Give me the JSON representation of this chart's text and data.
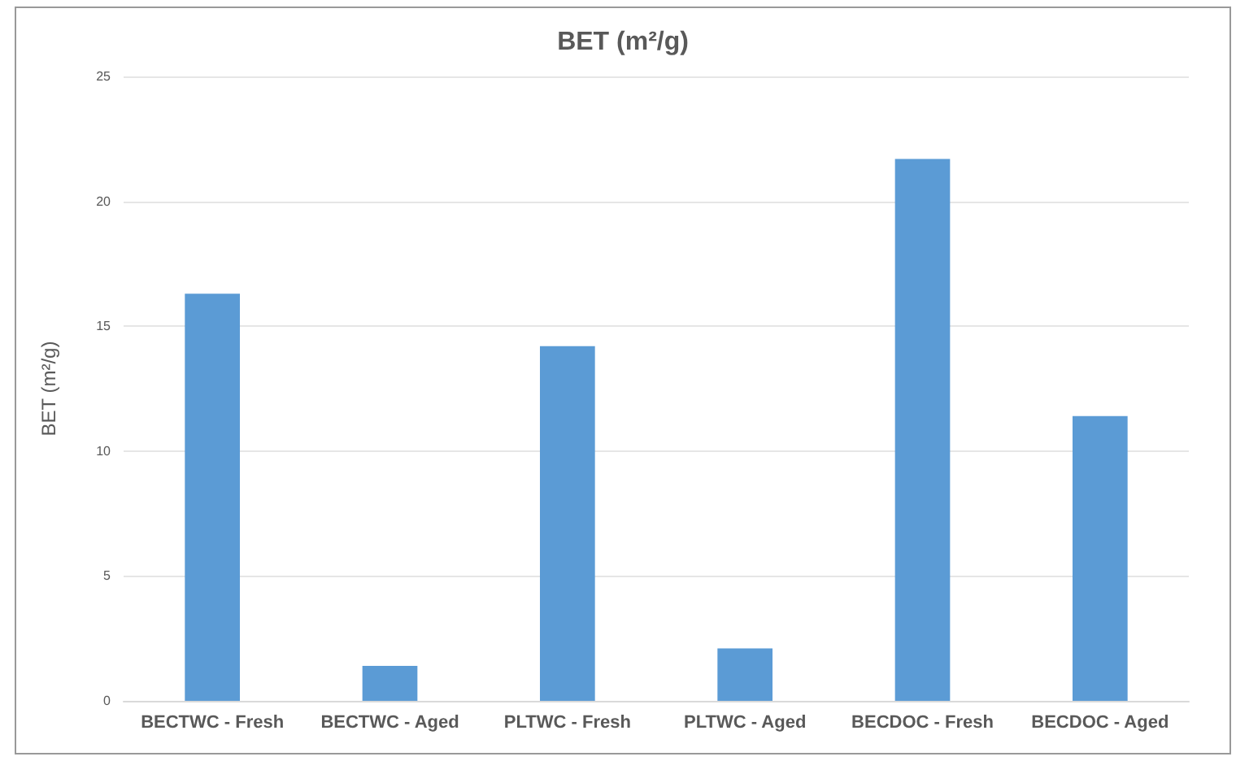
{
  "chart_data": {
    "type": "bar",
    "title": "BET (m²/g)",
    "ylabel": "BET (m²/g)",
    "categories": [
      "BECTWC - Fresh",
      "BECTWC - Aged",
      "PLTWC - Fresh",
      "PLTWC - Aged",
      "BECDOC - Fresh",
      "BECDOC - Aged"
    ],
    "values": [
      16.3,
      1.4,
      14.2,
      2.1,
      21.7,
      11.4
    ],
    "color": "#5b9bd5",
    "ylim": [
      0,
      25
    ],
    "yticks": [
      0,
      5,
      10,
      15,
      20,
      25
    ],
    "grid": "y"
  }
}
